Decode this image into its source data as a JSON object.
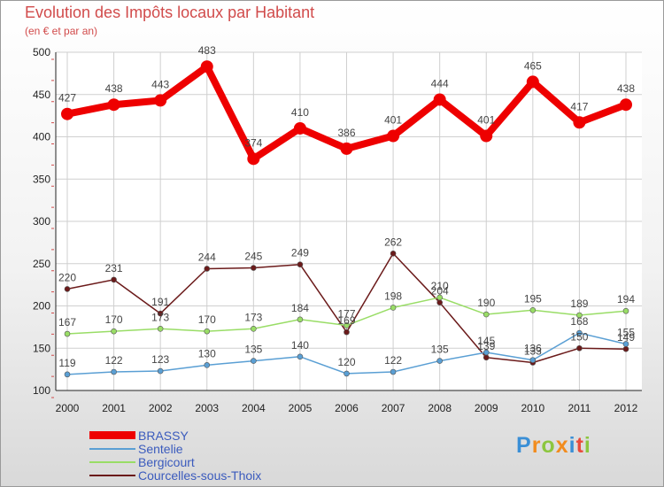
{
  "title": "Evolution des Impôts locaux par Habitant",
  "subtitle": "(en € et par an)",
  "brand": {
    "letters": [
      "P",
      "r",
      "o",
      "x",
      "i",
      "t",
      "i"
    ],
    "colors": [
      "#3a8fd6",
      "#f28c1e",
      "#8cc63f",
      "#f28c1e",
      "#3a8fd6",
      "#e94b3c",
      "#8cc63f"
    ]
  },
  "colors": {
    "title": "#d14b4b",
    "axis": "#222222",
    "grid": "#cfcfcf",
    "tick_marks": "#d14b4b"
  },
  "chart_data": {
    "type": "line",
    "title": "Evolution des Impôts locaux par Habitant",
    "subtitle": "(en € et par an)",
    "xlabel": "",
    "ylabel": "",
    "ylim": [
      100,
      500
    ],
    "yticks": [
      100,
      150,
      200,
      250,
      300,
      350,
      400,
      450,
      500
    ],
    "categories": [
      "2000",
      "2001",
      "2002",
      "2003",
      "2004",
      "2005",
      "2006",
      "2007",
      "2008",
      "2009",
      "2010",
      "2011",
      "2012"
    ],
    "grid": true,
    "legend_position": "bottom-left",
    "series": [
      {
        "name": "BRASSY",
        "color": "#ee0000",
        "width": 8,
        "marker": 7,
        "label_above": true,
        "values": [
          427,
          438,
          443,
          483,
          374,
          410,
          386,
          401,
          444,
          401,
          465,
          417,
          438
        ]
      },
      {
        "name": "Sentelie",
        "color": "#5a9fd4",
        "width": 1.5,
        "marker": 3,
        "label_above": true,
        "values": [
          119,
          122,
          123,
          130,
          135,
          140,
          120,
          122,
          135,
          145,
          136,
          168,
          155
        ]
      },
      {
        "name": "Bergicourt",
        "color": "#99dd66",
        "width": 1.5,
        "marker": 3,
        "label_above": true,
        "values": [
          167,
          170,
          173,
          170,
          173,
          184,
          177,
          198,
          210,
          190,
          195,
          189,
          194
        ]
      },
      {
        "name": "Courcelles-sous-Thoix",
        "color": "#6b1a1a",
        "width": 1.5,
        "marker": 3,
        "label_above": true,
        "values": [
          220,
          231,
          191,
          244,
          245,
          249,
          169,
          262,
          204,
          139,
          133,
          150,
          149
        ]
      }
    ]
  }
}
